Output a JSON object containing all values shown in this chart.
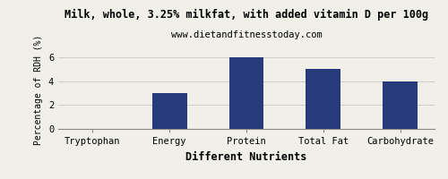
{
  "title": "Milk, whole, 3.25% milkfat, with added vitamin D per 100g",
  "subtitle": "www.dietandfitnesstoday.com",
  "xlabel": "Different Nutrients",
  "ylabel": "Percentage of RDH (%)",
  "categories": [
    "Tryptophan",
    "Energy",
    "Protein",
    "Total Fat",
    "Carbohydrate"
  ],
  "values": [
    0,
    3,
    6,
    5,
    4
  ],
  "bar_color": "#273b7a",
  "ylim": [
    0,
    6.6
  ],
  "yticks": [
    0,
    2,
    4,
    6
  ],
  "background_color": "#f0f0e8",
  "grid_color": "#cccccc",
  "title_fontsize": 8.5,
  "subtitle_fontsize": 7.5,
  "xlabel_fontsize": 8.5,
  "ylabel_fontsize": 7,
  "tick_fontsize": 7.5,
  "bar_width": 0.45
}
